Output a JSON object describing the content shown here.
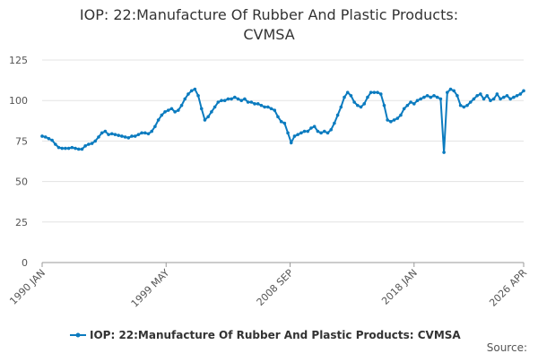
{
  "chart_data": {
    "type": "line",
    "title": [
      "IOP: 22:Manufacture Of Rubber And Plastic Products:",
      "CVMSA"
    ],
    "source": "Source:",
    "x": [
      "1990-01",
      "1990-04",
      "1990-07",
      "1990-10",
      "1991-01",
      "1991-04",
      "1991-07",
      "1991-10",
      "1992-01",
      "1992-04",
      "1992-07",
      "1992-10",
      "1993-01",
      "1993-04",
      "1993-07",
      "1993-10",
      "1994-01",
      "1994-04",
      "1994-07",
      "1994-10",
      "1995-01",
      "1995-04",
      "1995-07",
      "1995-10",
      "1996-01",
      "1996-04",
      "1996-07",
      "1996-10",
      "1997-01",
      "1997-04",
      "1997-07",
      "1997-10",
      "1998-01",
      "1998-04",
      "1998-07",
      "1998-10",
      "1999-01",
      "1999-04",
      "1999-07",
      "1999-10",
      "2000-01",
      "2000-04",
      "2000-07",
      "2000-10",
      "2001-01",
      "2001-04",
      "2001-07",
      "2001-10",
      "2002-01",
      "2002-04",
      "2002-07",
      "2002-10",
      "2003-01",
      "2003-04",
      "2003-07",
      "2003-10",
      "2004-01",
      "2004-04",
      "2004-07",
      "2004-10",
      "2005-01",
      "2005-04",
      "2005-07",
      "2005-10",
      "2006-01",
      "2006-04",
      "2006-07",
      "2006-10",
      "2007-01",
      "2007-04",
      "2007-07",
      "2007-10",
      "2008-01",
      "2008-04",
      "2008-07",
      "2008-10",
      "2009-01",
      "2009-04",
      "2009-07",
      "2009-10",
      "2010-01",
      "2010-04",
      "2010-07",
      "2010-10",
      "2011-01",
      "2011-04",
      "2011-07",
      "2011-10",
      "2012-01",
      "2012-04",
      "2012-07",
      "2012-10",
      "2013-01",
      "2013-04",
      "2013-07",
      "2013-10",
      "2014-01",
      "2014-04",
      "2014-07",
      "2014-10",
      "2015-01",
      "2015-04",
      "2015-07",
      "2015-10",
      "2016-01",
      "2016-04",
      "2016-07",
      "2016-10",
      "2017-01",
      "2017-04",
      "2017-07",
      "2017-10",
      "2018-01",
      "2018-04",
      "2018-07",
      "2018-10",
      "2019-01",
      "2019-04",
      "2019-07",
      "2019-10",
      "2020-01",
      "2020-04",
      "2020-07",
      "2020-10",
      "2021-01",
      "2021-04",
      "2021-07",
      "2021-10",
      "2022-01",
      "2022-04",
      "2022-07",
      "2022-10",
      "2023-01",
      "2023-04",
      "2023-07",
      "2023-10",
      "2024-01",
      "2024-04",
      "2024-07",
      "2024-10",
      "2025-01",
      "2025-04",
      "2025-07",
      "2025-10",
      "2026-01",
      "2026-04"
    ],
    "series": [
      {
        "name": "IOP: 22:Manufacture Of Rubber And Plastic Products: CVMSA",
        "color": "#0b7bbf",
        "values": [
          78,
          77.5,
          76.5,
          75.5,
          73,
          71,
          70.5,
          70.5,
          70.5,
          71,
          70.5,
          70,
          70,
          72,
          73,
          73.5,
          75,
          77.5,
          80,
          81,
          79,
          79.5,
          79,
          78.5,
          78,
          77.5,
          77,
          78,
          78,
          79,
          80,
          80,
          79.5,
          81,
          84,
          88,
          91,
          93,
          94,
          95,
          93,
          94,
          97,
          101,
          104,
          106,
          107,
          103,
          95,
          88,
          90,
          93,
          96,
          99,
          100,
          100,
          101,
          101,
          102,
          101,
          100,
          101,
          99,
          99,
          98,
          98,
          97,
          96,
          96,
          95,
          94,
          90,
          87,
          86,
          80,
          74,
          78,
          79,
          80,
          81,
          81,
          83,
          84,
          81,
          80,
          81,
          80,
          82,
          86,
          91,
          96,
          102,
          105,
          103,
          99,
          97,
          96,
          98,
          102,
          105,
          105,
          105,
          104,
          97,
          88,
          87,
          88,
          89,
          91,
          95,
          97,
          99,
          98,
          100,
          101,
          102,
          103,
          102,
          103,
          102,
          101,
          68,
          105,
          107,
          106,
          103,
          97,
          96,
          97,
          99,
          101,
          103,
          104,
          101,
          103,
          100,
          101,
          104,
          101,
          102,
          103,
          101,
          102,
          103,
          104,
          106
        ]
      }
    ],
    "xlim": [
      "1990-01",
      "2026-04"
    ],
    "xticks": [
      {
        "value": "1990-01",
        "label": "1990 JAN"
      },
      {
        "value": "1999-05",
        "label": "1999 MAY"
      },
      {
        "value": "2008-09",
        "label": "2008 SEP"
      },
      {
        "value": "2018-01",
        "label": "2018 JAN"
      },
      {
        "value": "2026-04",
        "label": "2026 APR"
      }
    ],
    "ylim": [
      0,
      125
    ],
    "yticks": [
      0,
      25,
      50,
      75,
      100,
      125
    ],
    "grid": true
  }
}
